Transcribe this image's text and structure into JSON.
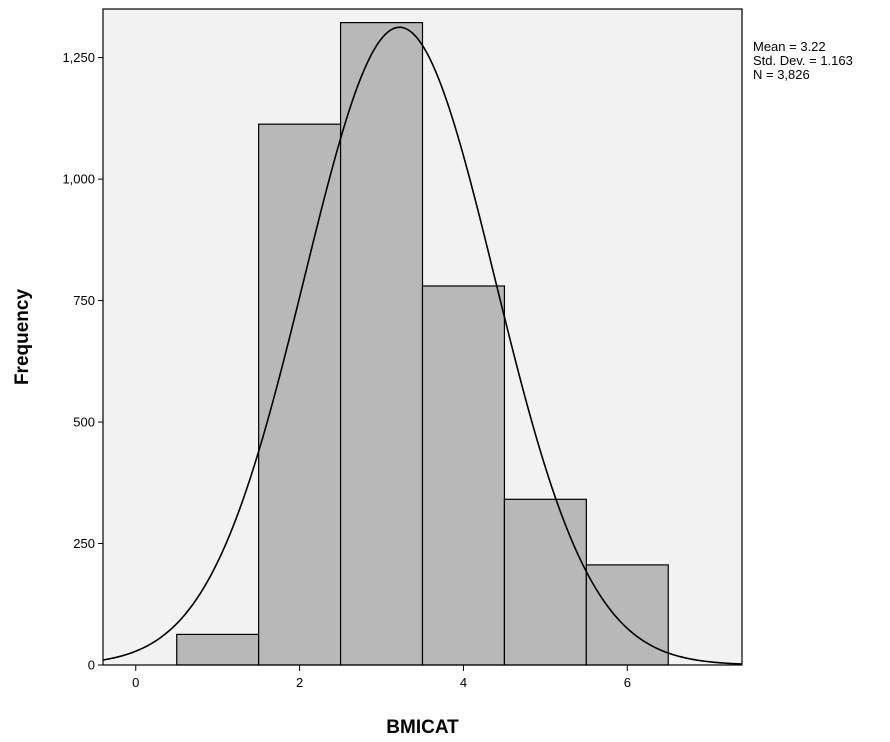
{
  "chart_data": {
    "type": "bar",
    "subtype": "histogram",
    "title": "",
    "xlabel": "BMICAT",
    "ylabel": "Frequency",
    "xlim": [
      -0.4,
      7.4
    ],
    "ylim": [
      0,
      1350
    ],
    "x_ticks": [
      0,
      2,
      4,
      6
    ],
    "y_ticks": [
      0,
      250,
      500,
      750,
      1000,
      1250
    ],
    "x_tick_labels": [
      "0",
      "2",
      "4",
      "6"
    ],
    "y_tick_labels": [
      "0",
      "250",
      "500",
      "750",
      "1,000",
      "1,250"
    ],
    "bins": [
      {
        "from": 0.5,
        "to": 1.5,
        "value": 63
      },
      {
        "from": 1.5,
        "to": 2.5,
        "value": 1113
      },
      {
        "from": 2.5,
        "to": 3.5,
        "value": 1322
      },
      {
        "from": 3.5,
        "to": 4.5,
        "value": 780
      },
      {
        "from": 4.5,
        "to": 5.5,
        "value": 341
      },
      {
        "from": 5.5,
        "to": 6.5,
        "value": 206
      }
    ],
    "normal_curve": {
      "mean": 3.22,
      "sd": 1.163,
      "n": 3826,
      "bin_width": 1
    },
    "grid": false,
    "legend_placement": "top-right outside plot",
    "stats_lines": [
      "Mean = 3.22",
      "Std. Dev. = 1.163",
      "N = 3,826"
    ],
    "colors": {
      "plot_background": "#f2f2f2",
      "bar_fill": "#b8b8b8",
      "bar_stroke": "#000000",
      "curve": "#000000",
      "axis": "#000000"
    }
  }
}
